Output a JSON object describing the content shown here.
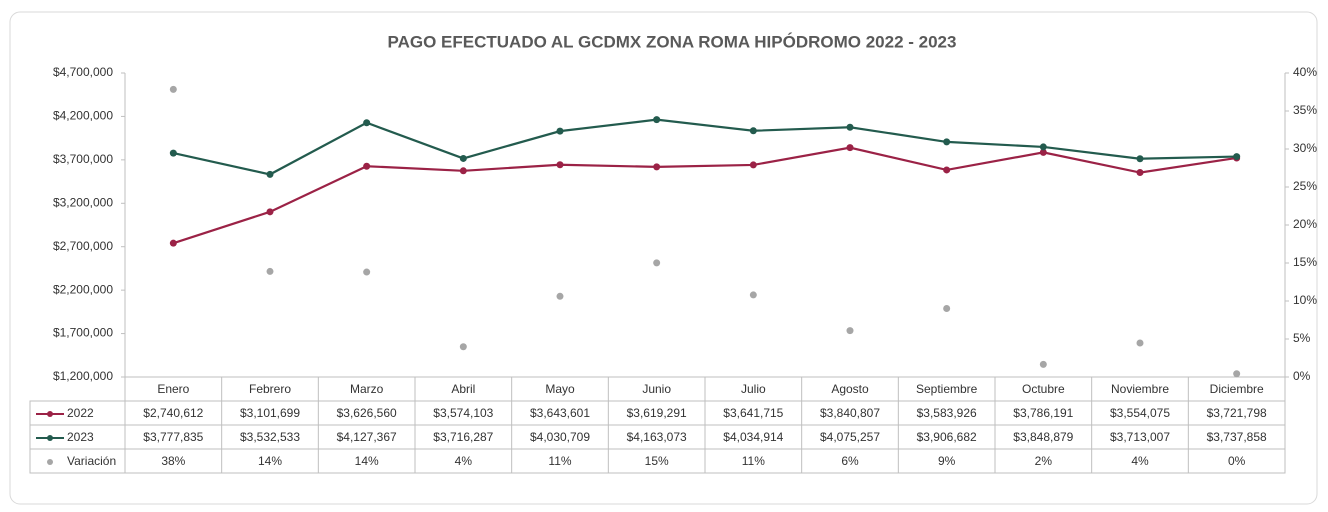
{
  "chart_data": {
    "type": "line",
    "title": "PAGO EFECTUADO AL GCDMX ZONA ROMA HIPÓDROMO 2022  -  2023",
    "categories": [
      "Enero",
      "Febrero",
      "Marzo",
      "Abril",
      "Mayo",
      "Junio",
      "Julio",
      "Agosto",
      "Septiembre",
      "Octubre",
      "Noviembre",
      "Diciembre"
    ],
    "series": [
      {
        "name": "2022",
        "color": "#9b2246",
        "values": [
          2740612,
          3101699,
          3626560,
          3574103,
          3643601,
          3619291,
          3641715,
          3840807,
          3583926,
          3786191,
          3554075,
          3721798
        ],
        "value_labels": [
          "$2,740,612",
          "$3,101,699",
          "$3,626,560",
          "$3,574,103",
          "$3,643,601",
          "$3,619,291",
          "$3,641,715",
          "$3,840,807",
          "$3,583,926",
          "$3,786,191",
          "$3,554,075",
          "$3,721,798"
        ]
      },
      {
        "name": "2023",
        "color": "#235b4e",
        "values": [
          3777835,
          3532533,
          4127367,
          3716287,
          4030709,
          4163073,
          4034914,
          4075257,
          3906682,
          3848879,
          3713007,
          3737858
        ],
        "value_labels": [
          "$3,777,835",
          "$3,532,533",
          "$4,127,367",
          "$3,716,287",
          "$4,030,709",
          "$4,163,073",
          "$4,034,914",
          "$4,075,257",
          "$3,906,682",
          "$3,848,879",
          "$3,713,007",
          "$3,737,858"
        ]
      },
      {
        "name": "Variación",
        "color": "#a6a6a6",
        "type": "scatter",
        "axis": "y2",
        "values": [
          37.85,
          13.89,
          13.81,
          3.98,
          10.62,
          15.02,
          10.8,
          6.1,
          9.01,
          1.66,
          4.47,
          0.43
        ],
        "value_labels": [
          "38%",
          "14%",
          "14%",
          "4%",
          "11%",
          "15%",
          "11%",
          "6%",
          "9%",
          "2%",
          "4%",
          "0%"
        ]
      }
    ],
    "ylim": [
      1200000,
      4700000
    ],
    "yticks": [
      {
        "value": 1200000,
        "label": "$1,200,000"
      },
      {
        "value": 1700000,
        "label": "$1,700,000"
      },
      {
        "value": 2200000,
        "label": "$2,200,000"
      },
      {
        "value": 2700000,
        "label": "$2,700,000"
      },
      {
        "value": 3200000,
        "label": "$3,200,000"
      },
      {
        "value": 3700000,
        "label": "$3,700,000"
      },
      {
        "value": 4200000,
        "label": "$4,200,000"
      },
      {
        "value": 4700000,
        "label": "$4,700,000"
      }
    ],
    "y2lim": [
      0,
      40
    ],
    "y2ticks": [
      {
        "value": 0,
        "label": "0%"
      },
      {
        "value": 5,
        "label": "5%"
      },
      {
        "value": 10,
        "label": "10%"
      },
      {
        "value": 15,
        "label": "15%"
      },
      {
        "value": 20,
        "label": "20%"
      },
      {
        "value": 25,
        "label": "25%"
      },
      {
        "value": 30,
        "label": "30%"
      },
      {
        "value": 35,
        "label": "35%"
      },
      {
        "value": 40,
        "label": "40%"
      }
    ]
  }
}
